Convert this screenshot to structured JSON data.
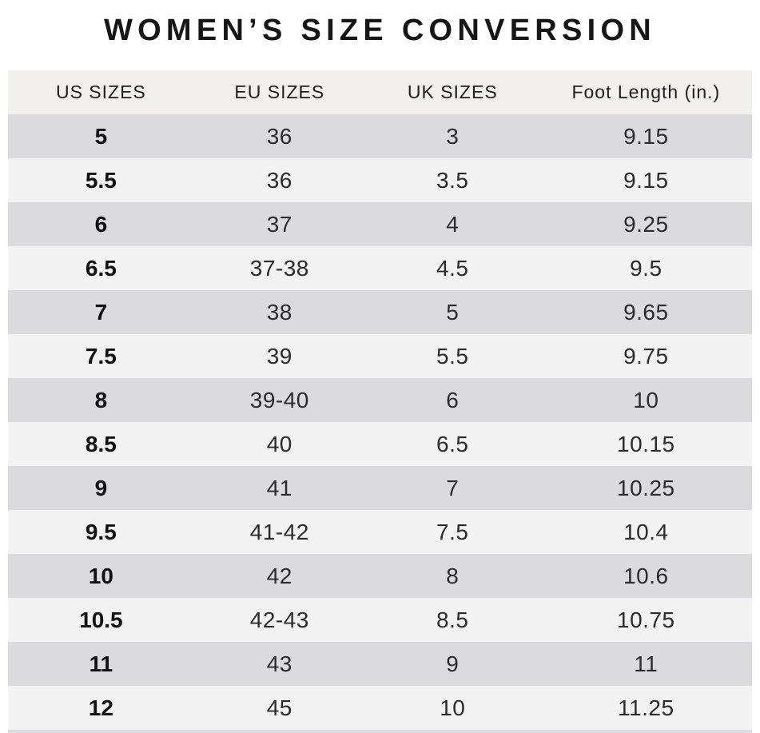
{
  "page_title": "WOMEN’S SIZE CONVERSION",
  "colors": {
    "background": "#ffffff",
    "header_bg": "#f1f0ee",
    "row_dark": "#dbdbdd",
    "row_light": "#f3f2f2",
    "title_text": "#161616",
    "cell_text": "#2b2b2b"
  },
  "chart_data": {
    "type": "table",
    "title": "WOMEN’S SIZE CONVERSION",
    "columns": [
      "US SIZES",
      "EU SIZES",
      "UK SIZES",
      "Foot Length (in.)"
    ],
    "column_keys": [
      "us_size",
      "eu_size",
      "uk_size",
      "foot_length_in"
    ],
    "rows": [
      [
        "5",
        "36",
        "3",
        "9.15"
      ],
      [
        "5.5",
        "36",
        "3.5",
        "9.15"
      ],
      [
        "6",
        "37",
        "4",
        "9.25"
      ],
      [
        "6.5",
        "37-38",
        "4.5",
        "9.5"
      ],
      [
        "7",
        "38",
        "5",
        "9.65"
      ],
      [
        "7.5",
        "39",
        "5.5",
        "9.75"
      ],
      [
        "8",
        "39-40",
        "6",
        "10"
      ],
      [
        "8.5",
        "40",
        "6.5",
        "10.15"
      ],
      [
        "9",
        "41",
        "7",
        "10.25"
      ],
      [
        "9.5",
        "41-42",
        "7.5",
        "10.4"
      ],
      [
        "10",
        "42",
        "8",
        "10.6"
      ],
      [
        "10.5",
        "42-43",
        "8.5",
        "10.75"
      ],
      [
        "11",
        "43",
        "9",
        "11"
      ],
      [
        "12",
        "45",
        "10",
        "11.25"
      ]
    ],
    "layout": {
      "row_striping": "first row dark, alternating",
      "alignment": "center"
    }
  }
}
